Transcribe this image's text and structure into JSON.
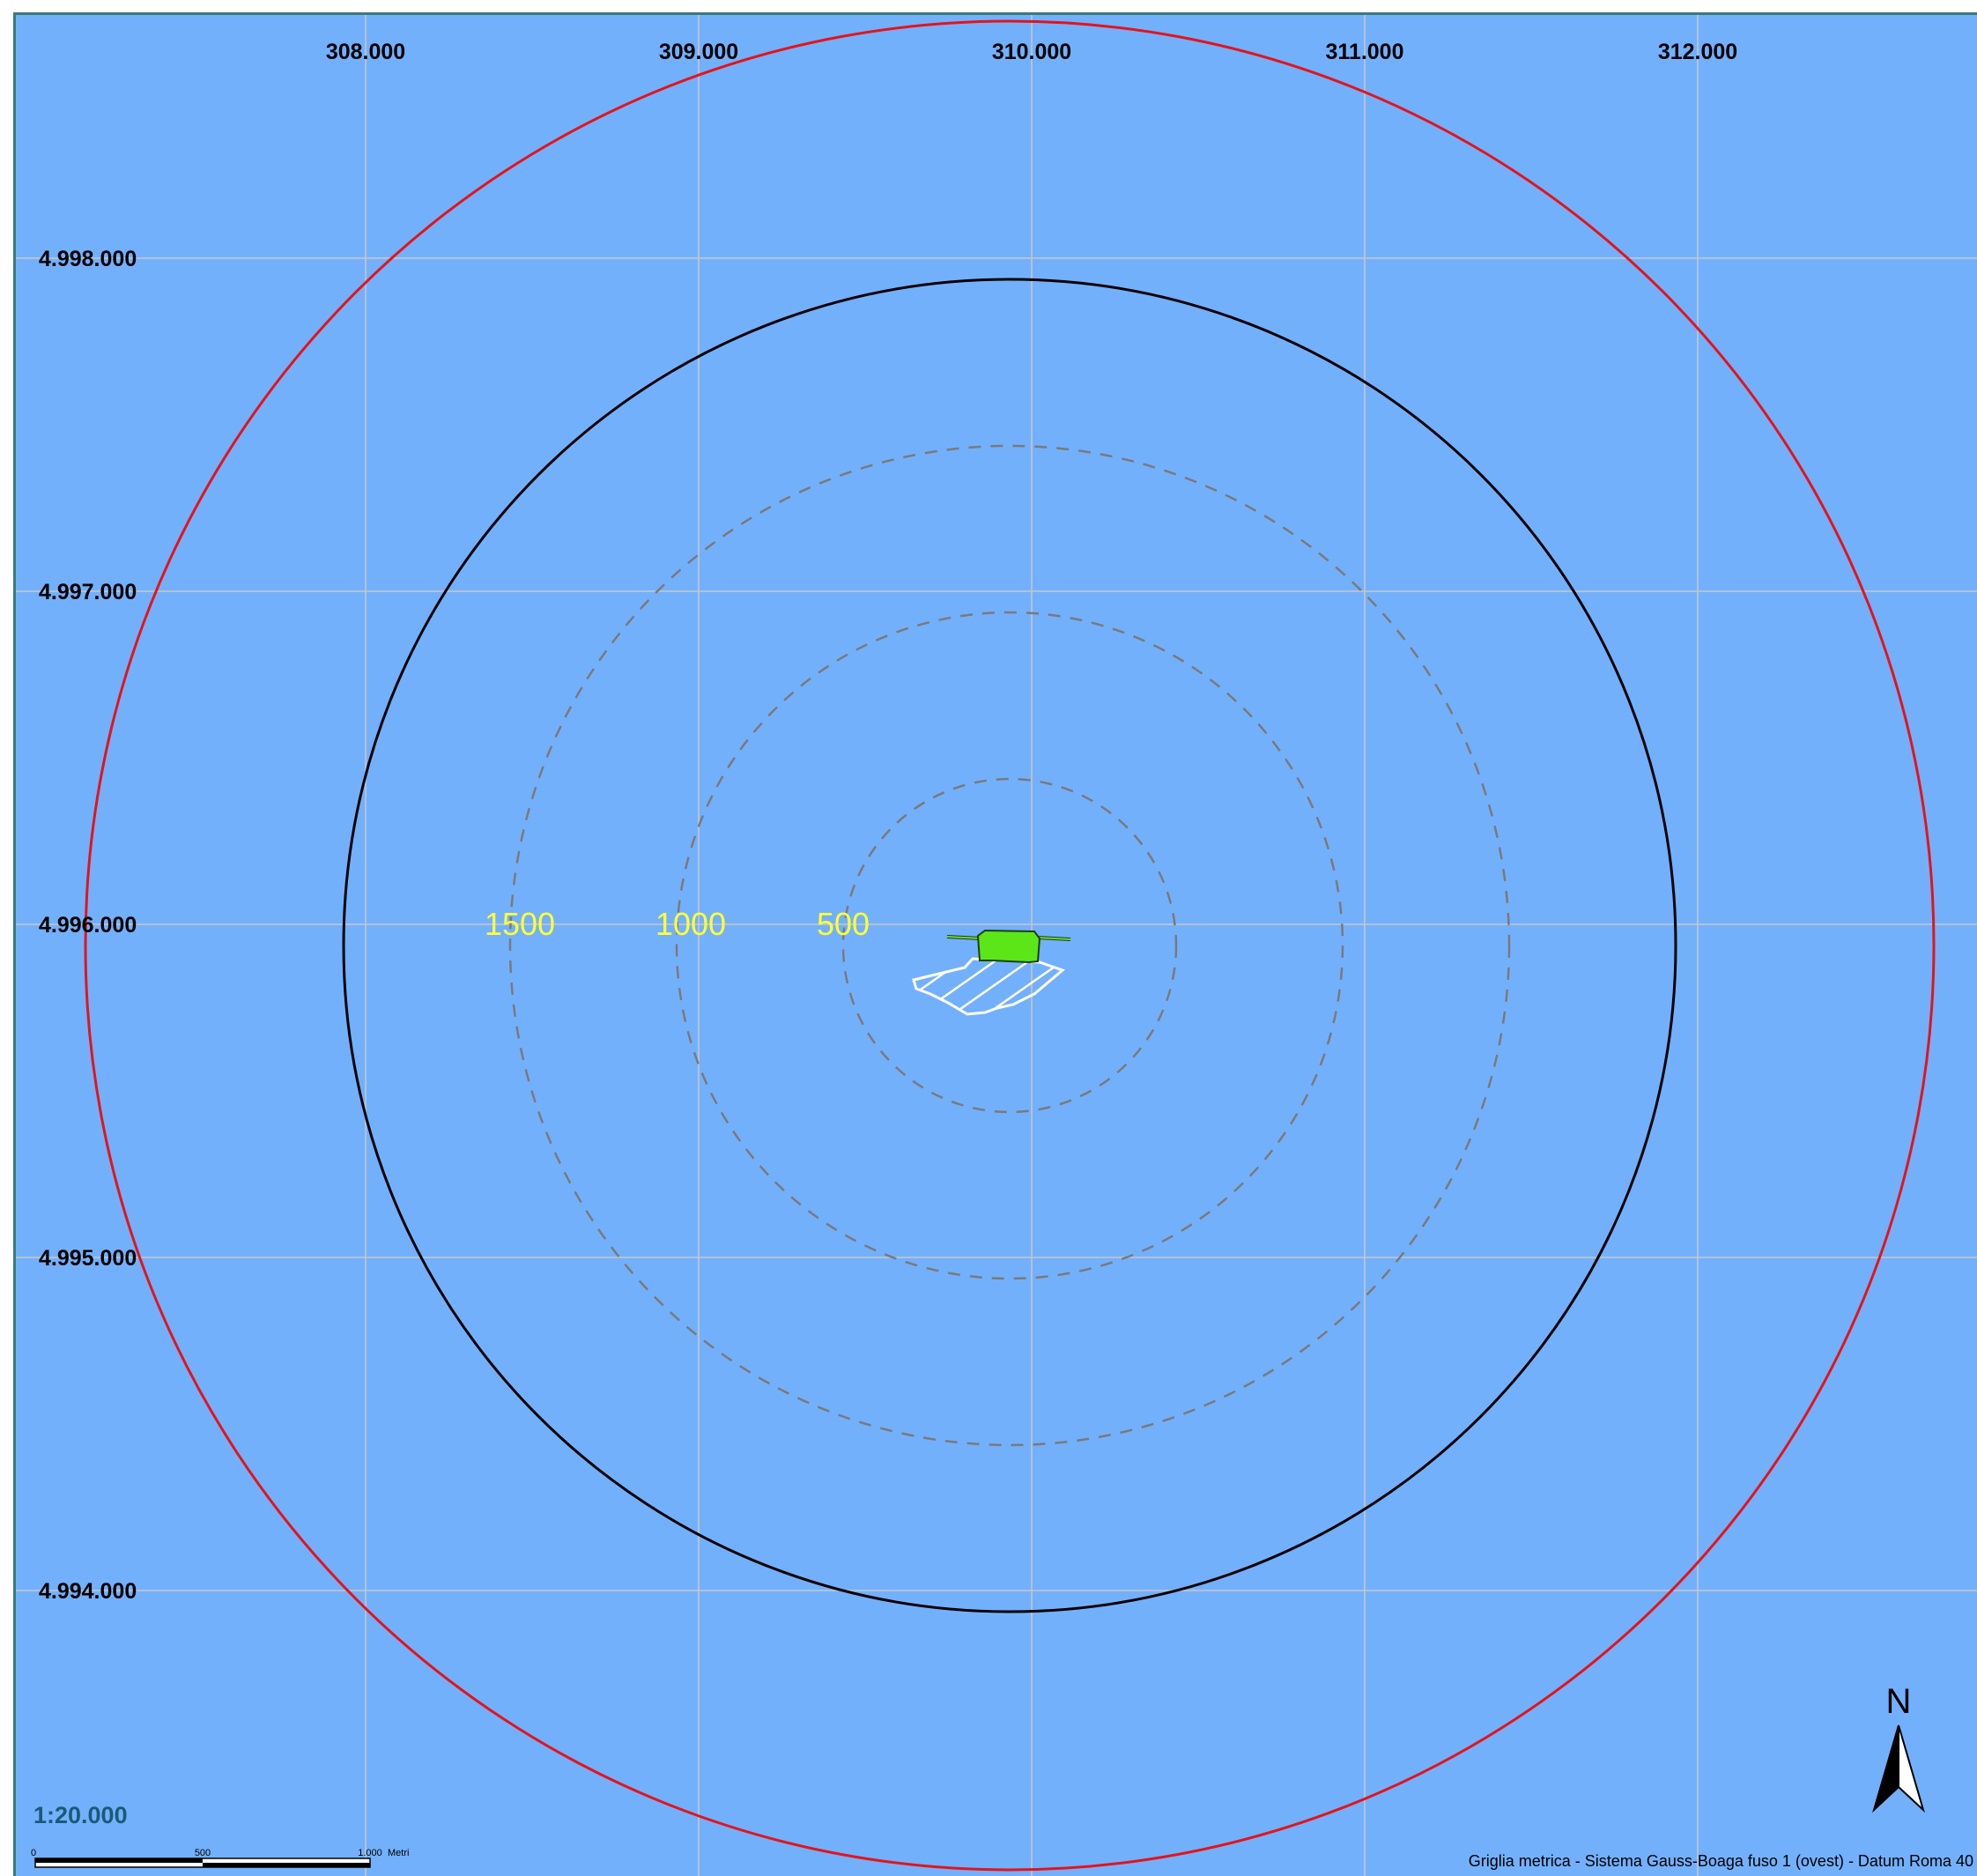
{
  "map": {
    "background_color": "#73b0fc",
    "frame_color": "#3a7a7a",
    "grid_color": "#c8c8c8",
    "x_grid_labels": [
      "308.000",
      "309.000",
      "310.000",
      "311.000",
      "312.000"
    ],
    "y_grid_labels": [
      "4.998.000",
      "4.997.000",
      "4.996.000",
      "4.995.000",
      "4.994.000"
    ],
    "buffer_rings": [
      {
        "label": "500",
        "style": "dashed",
        "color": "#7a7a7a"
      },
      {
        "label": "1000",
        "style": "dashed",
        "color": "#7a7a7a"
      },
      {
        "label": "1500",
        "style": "dashed",
        "color": "#7a7a7a"
      },
      {
        "label": "",
        "style": "solid",
        "color": "#000000"
      },
      {
        "label": "",
        "style": "solid",
        "color": "#e3141b"
      }
    ],
    "ring_label_color": "#ffff33",
    "site_fill_color": "#5ce619",
    "hatched_area_color": "#ffffff"
  },
  "scale": {
    "ratio": "1:20.000",
    "tick_labels": [
      "0",
      "500",
      "1.000"
    ],
    "unit": "Metri"
  },
  "north_arrow": {
    "label": "N",
    "icon": "north-arrow-icon"
  },
  "footer": {
    "grid_note": "Griglia metrica - Sistema Gauss-Boaga fuso 1 (ovest) - Datum Roma 40"
  }
}
